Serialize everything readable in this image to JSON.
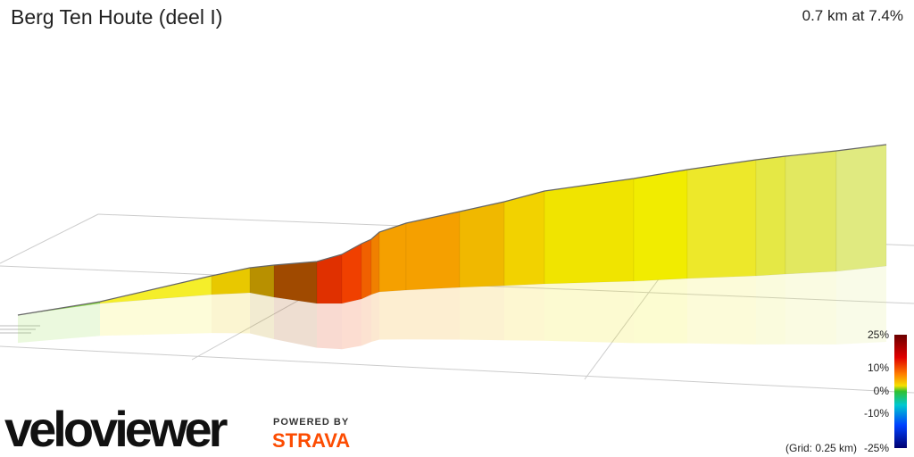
{
  "header": {
    "title": "Berg Ten Houte (deel I)",
    "stats": "0.7 km at 7.4%"
  },
  "legend": {
    "labels": [
      "25%",
      "10%",
      "0%",
      "-10%",
      "-25%"
    ],
    "grid": "(Grid: 0.25 km)"
  },
  "branding": {
    "logo": "veloviewer",
    "powered": "POWERED BY",
    "partner": "STRAVA"
  }
}
